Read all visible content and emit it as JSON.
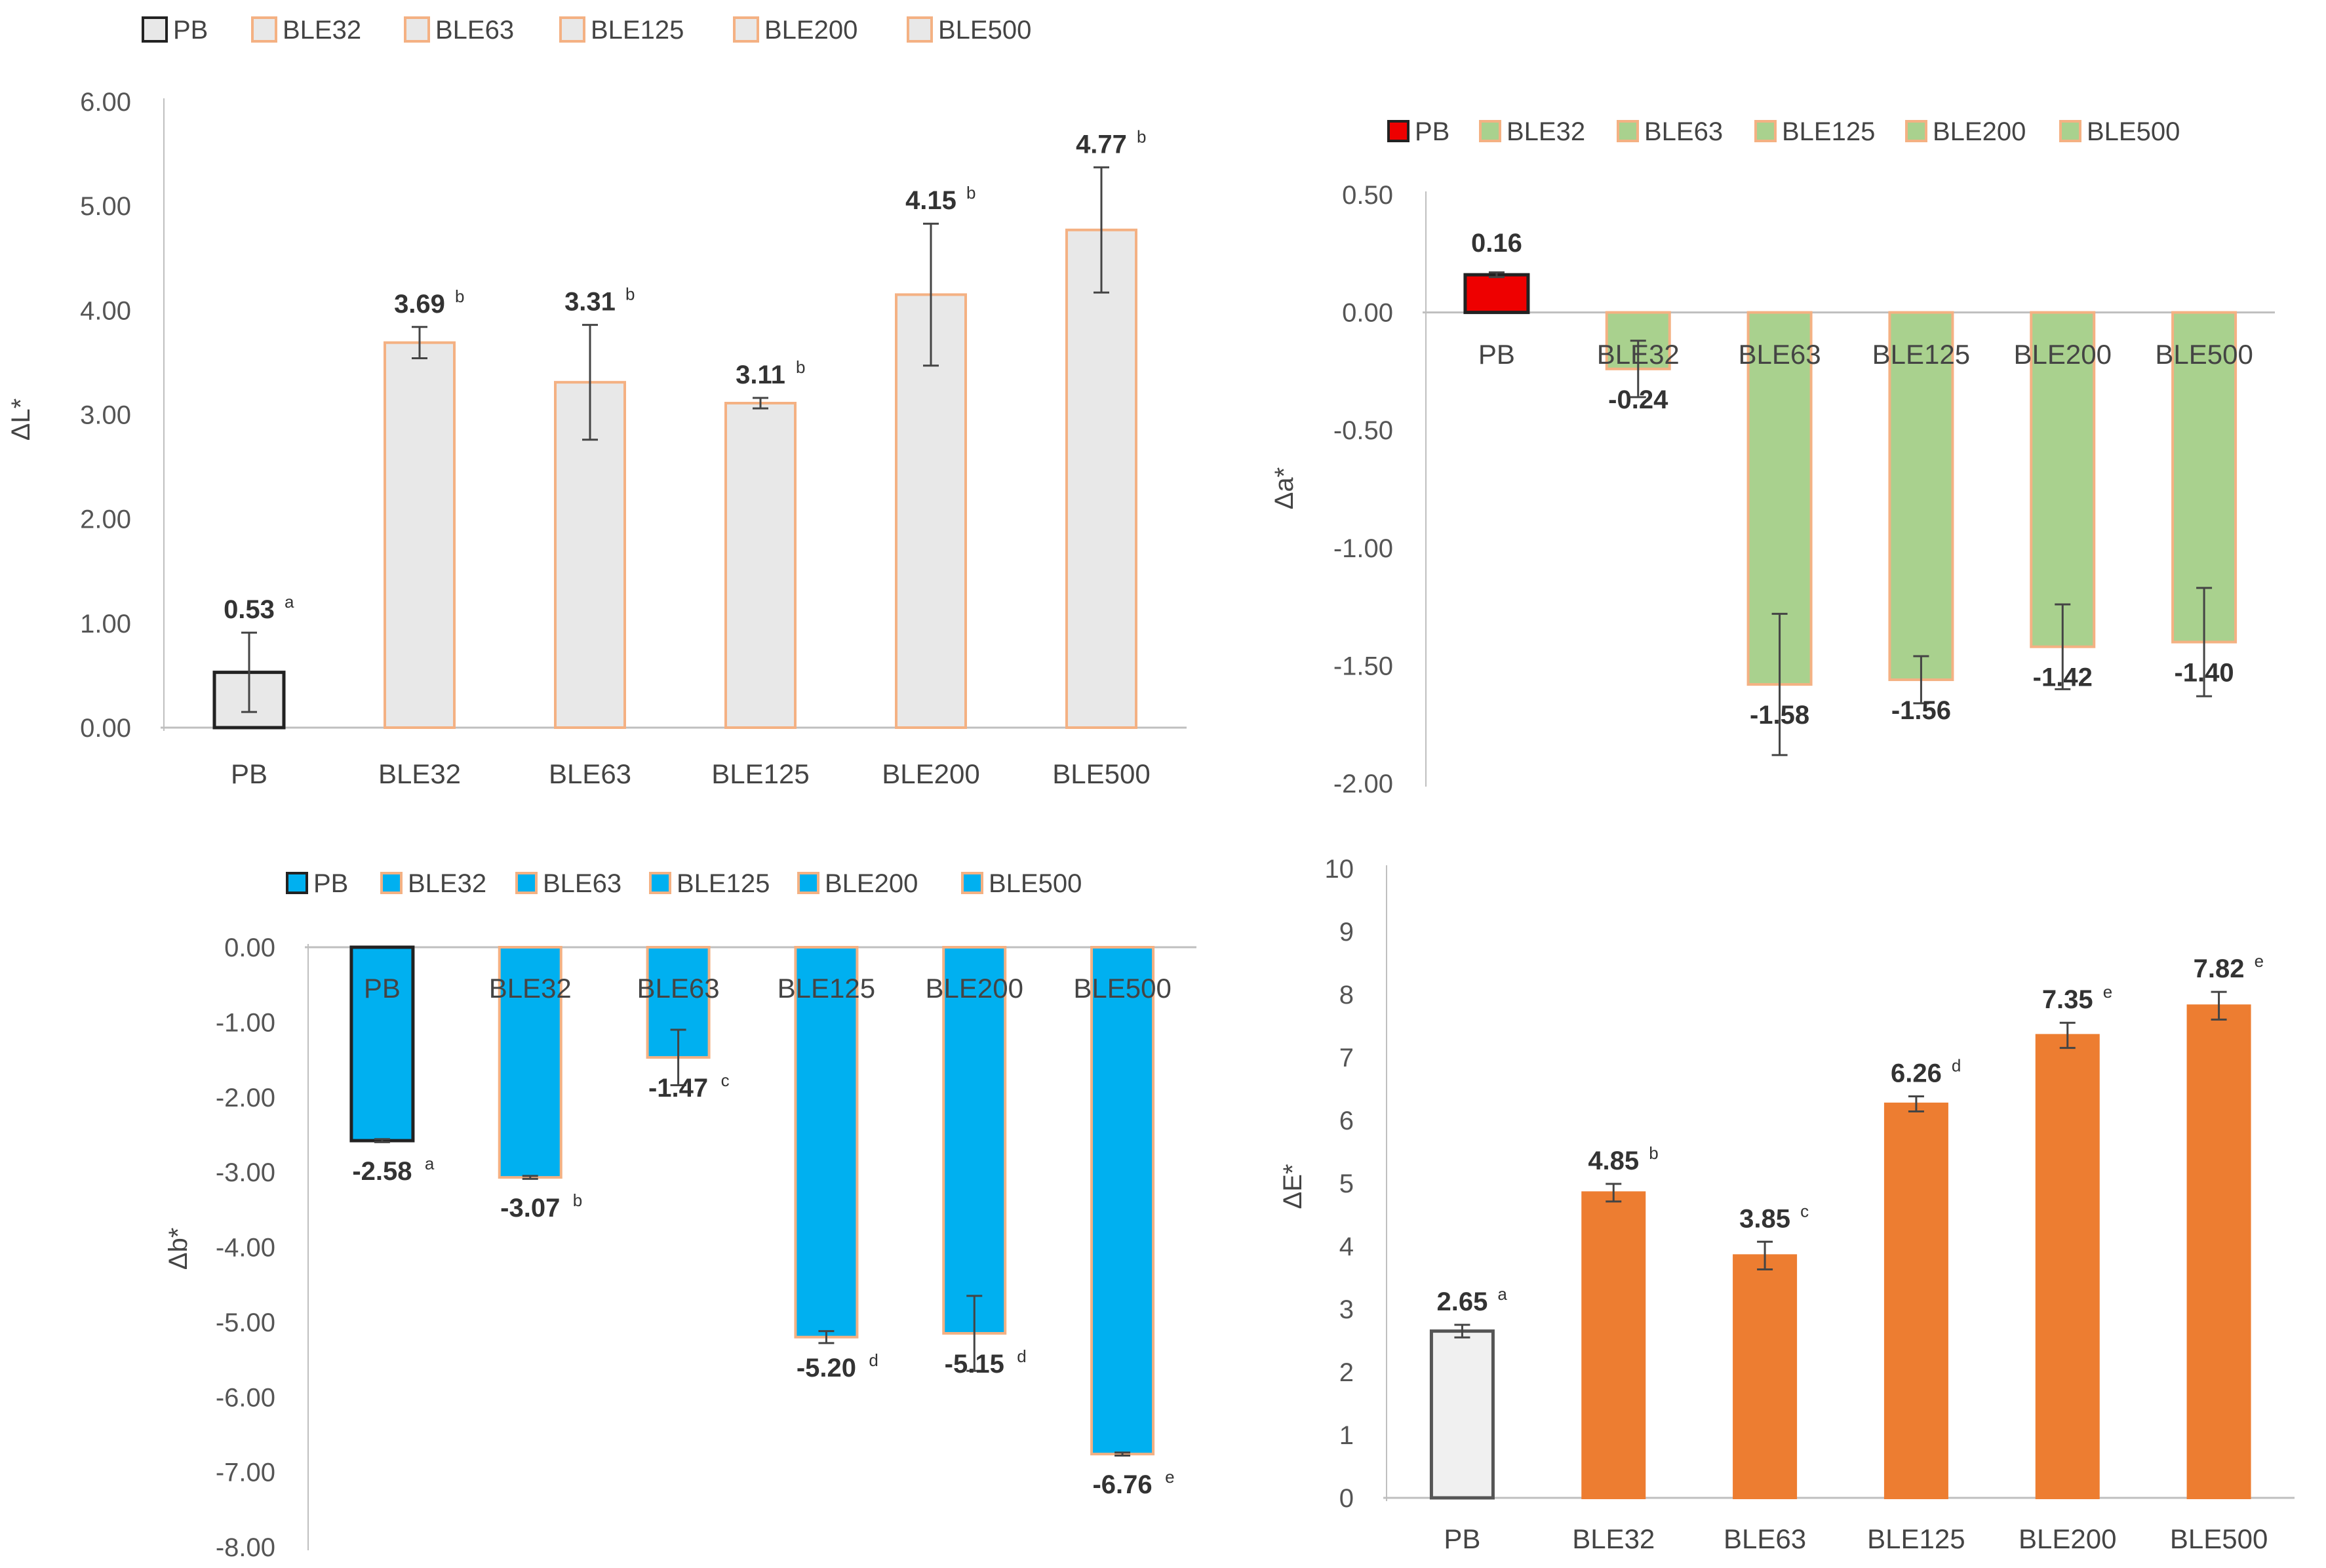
{
  "chart_data": [
    {
      "id": "dL",
      "type": "bar",
      "ylabel": "ΔL*",
      "ylim": [
        0,
        6
      ],
      "ytick_labels": [
        "0.00",
        "1.00",
        "2.00",
        "3.00",
        "4.00",
        "5.00",
        "6.00"
      ],
      "categories": [
        "PB",
        "BLE32",
        "BLE63",
        "BLE125",
        "BLE200",
        "BLE500"
      ],
      "values": [
        0.53,
        3.69,
        3.31,
        3.11,
        4.15,
        4.77
      ],
      "errors": [
        0.38,
        0.15,
        0.55,
        0.05,
        0.68,
        0.6
      ],
      "labels": [
        "0.53",
        "3.69",
        "3.31",
        "3.11",
        "4.15",
        "4.77"
      ],
      "letters": [
        "a",
        "b",
        "b",
        "b",
        "b",
        "b"
      ],
      "legend": [
        "PB",
        "BLE32",
        "BLE63",
        "BLE125",
        "BLE200",
        "BLE500"
      ],
      "colors": {
        "PB_fill": "#e8e8e8",
        "PB_edge": "#222222",
        "fill": "#e8e8e8",
        "edge": "#f4b183"
      }
    },
    {
      "id": "da",
      "type": "bar",
      "ylabel": "Δa*",
      "ylim": [
        -2,
        0.5
      ],
      "ytick_labels": [
        "-2.00",
        "-1.50",
        "-1.00",
        "-0.50",
        "0.00",
        "0.50"
      ],
      "categories": [
        "PB",
        "BLE32",
        "BLE63",
        "BLE125",
        "BLE200",
        "BLE500"
      ],
      "values": [
        0.16,
        -0.24,
        -1.58,
        -1.56,
        -1.42,
        -1.4
      ],
      "errors": [
        0.01,
        0.12,
        0.3,
        0.1,
        0.18,
        0.23
      ],
      "labels": [
        "0.16",
        "-0.24",
        "-1.58",
        "-1.56",
        "-1.42",
        "-1.40"
      ],
      "letters": [
        "",
        "",
        "",
        "",
        "",
        ""
      ],
      "legend": [
        "PB",
        "BLE32",
        "BLE63",
        "BLE125",
        "BLE200",
        "BLE500"
      ],
      "colors": {
        "PB_fill": "#ee0000",
        "PB_edge": "#222222",
        "fill": "#a9d18e",
        "edge": "#f4b183"
      }
    },
    {
      "id": "db",
      "type": "bar",
      "ylabel": "Δb*",
      "ylim": [
        -8,
        0
      ],
      "ytick_labels": [
        "-8.00",
        "-7.00",
        "-6.00",
        "-5.00",
        "-4.00",
        "-3.00",
        "-2.00",
        "-1.00",
        "0.00"
      ],
      "categories": [
        "PB",
        "BLE32",
        "BLE63",
        "BLE125",
        "BLE200",
        "BLE500"
      ],
      "values": [
        -2.58,
        -3.07,
        -1.47,
        -5.2,
        -5.15,
        -6.76
      ],
      "errors": [
        0.02,
        0.02,
        0.37,
        0.08,
        0.5,
        0.02
      ],
      "labels": [
        "-2.58",
        "-3.07",
        "-1.47",
        "-5.20",
        "-5.15",
        "-6.76"
      ],
      "letters": [
        "a",
        "b",
        "c",
        "d",
        "d",
        "e"
      ],
      "legend": [
        "PB",
        "BLE32",
        "BLE63",
        "BLE125",
        "BLE200",
        "BLE500"
      ],
      "colors": {
        "PB_fill": "#00b0f0",
        "PB_edge": "#222222",
        "fill": "#00b0f0",
        "edge": "#f4b183"
      }
    },
    {
      "id": "dE",
      "type": "bar",
      "ylabel": "ΔE*",
      "ylim": [
        0,
        10
      ],
      "ytick_labels": [
        "0",
        "1",
        "2",
        "3",
        "4",
        "5",
        "6",
        "7",
        "8",
        "9",
        "10"
      ],
      "categories": [
        "PB",
        "BLE32",
        "BLE63",
        "BLE125",
        "BLE200",
        "BLE500"
      ],
      "values": [
        2.65,
        4.85,
        3.85,
        6.26,
        7.35,
        7.82
      ],
      "errors": [
        0.1,
        0.14,
        0.22,
        0.12,
        0.2,
        0.22
      ],
      "labels": [
        "2.65",
        "4.85",
        "3.85",
        "6.26",
        "7.35",
        "7.82"
      ],
      "letters": [
        "a",
        "b",
        "c",
        "d",
        "e",
        "e"
      ],
      "legend": [],
      "colors": {
        "PB_fill": "#f0f0f0",
        "PB_edge": "#555555",
        "fill": "#ed7d31",
        "edge": "#ed7d31"
      }
    }
  ]
}
